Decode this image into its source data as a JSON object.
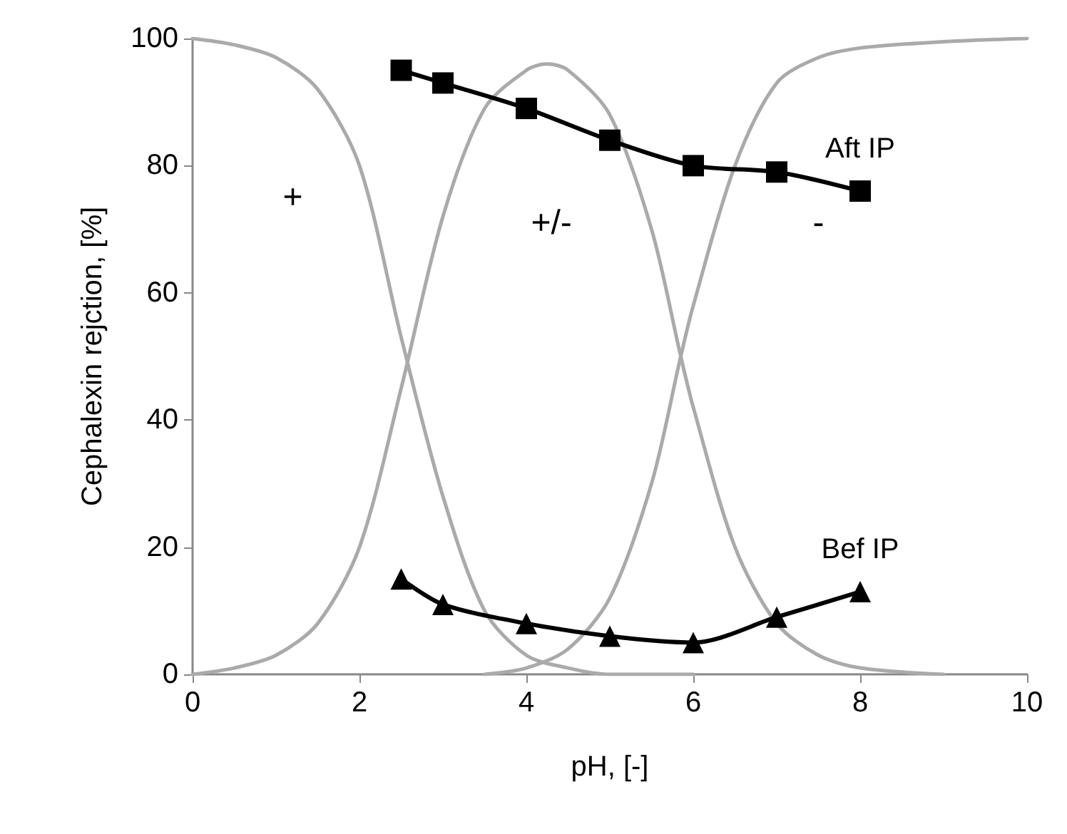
{
  "chart_data": {
    "type": "line",
    "xlabel": "pH, [-]",
    "ylabel": "Cephalexin rejction, [%]",
    "xlim": [
      0,
      10
    ],
    "xticks": [
      0,
      2,
      4,
      6,
      8,
      10
    ],
    "ylim": [
      0,
      100
    ],
    "yticks": [
      0,
      20,
      40,
      60,
      80,
      100
    ],
    "grid": false,
    "legend": false,
    "annotations": [
      "+",
      "+/-",
      "-"
    ],
    "series": [
      {
        "color": "#aaaaaa",
        "marker": "none",
        "x": [
          0,
          0.5,
          1,
          1.5,
          2,
          2.5,
          3,
          3.5,
          4,
          4.5,
          5,
          6
        ],
        "values": [
          100,
          99,
          97,
          92,
          80,
          53,
          28,
          10,
          3,
          1,
          0,
          0
        ]
      },
      {
        "color": "#aaaaaa",
        "marker": "none",
        "x": [
          0,
          0.5,
          1,
          1.5,
          2,
          2.5,
          3,
          3.5,
          4,
          4.25,
          4.5,
          5,
          5.5,
          5.85,
          6,
          6.5,
          7,
          7.5,
          8,
          9
        ],
        "values": [
          0,
          1,
          3,
          8,
          20,
          45,
          72,
          89,
          95,
          96,
          95,
          88,
          70,
          50,
          42,
          20,
          8,
          3,
          1,
          0
        ]
      },
      {
        "color": "#aaaaaa",
        "marker": "none",
        "x": [
          3.5,
          4,
          4.5,
          5,
          5.5,
          5.85,
          6,
          6.5,
          7,
          7.5,
          8,
          9,
          10
        ],
        "values": [
          0,
          1,
          4,
          12,
          30,
          50,
          58,
          80,
          93,
          97,
          98.5,
          99.5,
          100
        ]
      },
      {
        "name": "Aft IP",
        "color": "#000000",
        "marker": "square",
        "x": [
          2.5,
          3,
          4,
          5,
          6,
          7,
          8
        ],
        "values": [
          95,
          93,
          89,
          84,
          80,
          79,
          76
        ]
      },
      {
        "name": "Bef IP",
        "color": "#000000",
        "marker": "triangle",
        "x": [
          2.5,
          3,
          4,
          5,
          6,
          7,
          8
        ],
        "values": [
          15,
          11,
          8,
          6,
          5,
          9,
          13
        ]
      }
    ]
  }
}
